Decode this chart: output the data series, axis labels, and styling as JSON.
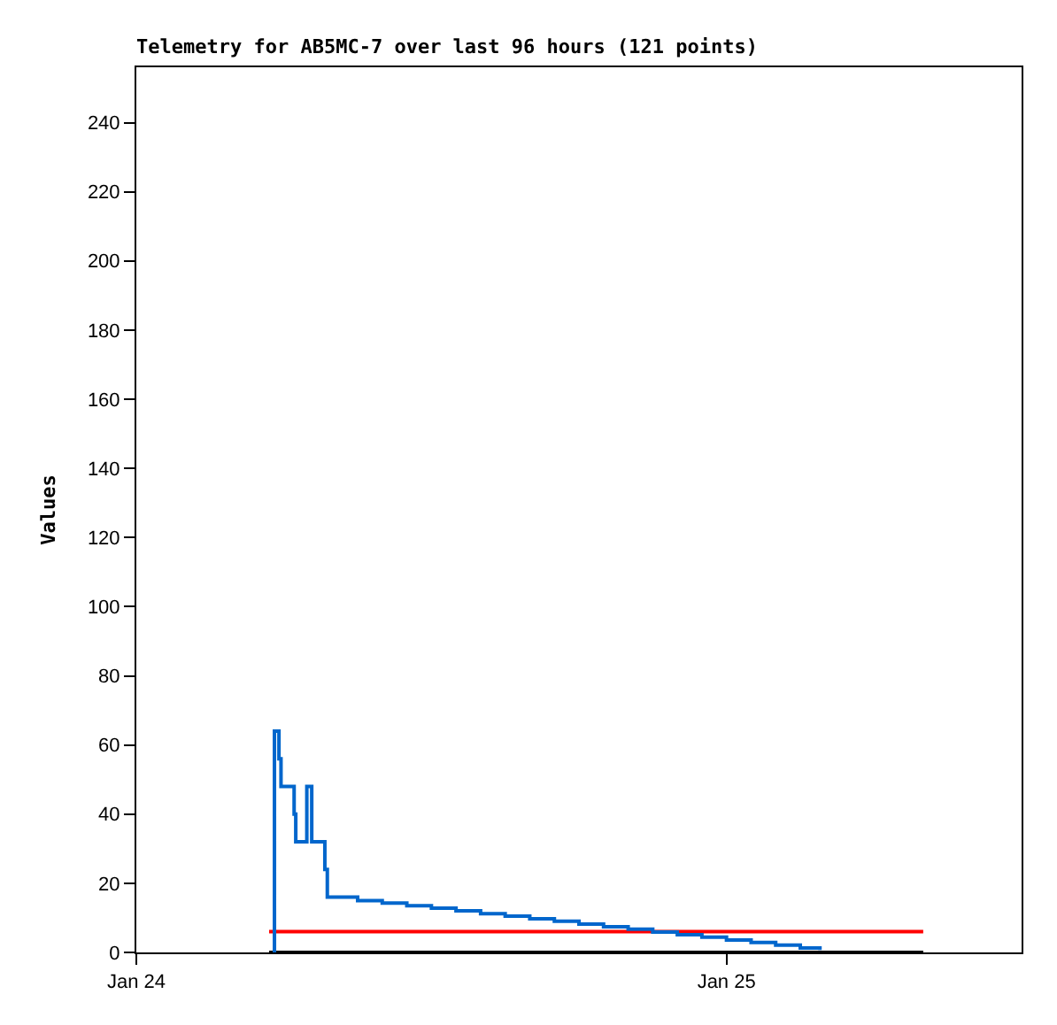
{
  "chart_data": {
    "type": "step",
    "title": "Telemetry for AB5MC-7 over last 96 hours (121 points)",
    "ylabel": "Values",
    "xlim": [
      "--01-24T00:00",
      "--01-25T12:00"
    ],
    "xticks": [
      {
        "value": "--01-24",
        "label": "Jan 24"
      },
      {
        "value": "--01-25",
        "label": "Jan 25"
      }
    ],
    "ylim": [
      0,
      256
    ],
    "yticks": [
      0,
      20,
      40,
      60,
      80,
      100,
      120,
      140,
      160,
      180,
      200,
      220,
      240
    ],
    "marker": "none",
    "line_style": "solid",
    "series": [
      {
        "color": "#000000",
        "x": [
          "--01-24T05:24",
          "--01-25T08:00"
        ],
        "values": [
          0,
          0
        ]
      },
      {
        "color": "#ff0000",
        "x": [
          "--01-24T05:24",
          "--01-25T08:00"
        ],
        "values": [
          6,
          6
        ]
      },
      {
        "color": "#0066cc",
        "x": [
          "--01-24T05:33",
          "--01-24T05:37",
          "--01-24T05:48",
          "--01-24T05:53",
          "--01-24T06:25",
          "--01-24T06:29",
          "--01-24T06:56",
          "--01-24T07:08",
          "--01-24T07:40",
          "--01-24T07:46",
          "--01-24T09:00",
          "--01-24T10:00",
          "--01-24T11:00",
          "--01-24T12:00",
          "--01-24T13:00",
          "--01-24T14:00",
          "--01-24T15:00",
          "--01-24T16:00",
          "--01-24T17:00",
          "--01-24T18:00",
          "--01-24T19:00",
          "--01-24T20:00",
          "--01-24T21:00",
          "--01-24T22:00",
          "--01-24T23:00",
          "--01-25T00:00",
          "--01-25T01:00",
          "--01-25T02:00",
          "--01-25T03:00",
          "--01-25T03:48"
        ],
        "values": [
          0,
          64,
          56,
          48,
          40,
          32,
          48,
          32,
          24,
          16,
          15,
          14.3,
          13.5,
          12.8,
          12,
          11.2,
          10.5,
          9.7,
          9,
          8.2,
          7.4,
          6.7,
          5.9,
          5.1,
          4.4,
          3.6,
          2.9,
          2.1,
          1.3,
          0.7
        ]
      }
    ]
  }
}
